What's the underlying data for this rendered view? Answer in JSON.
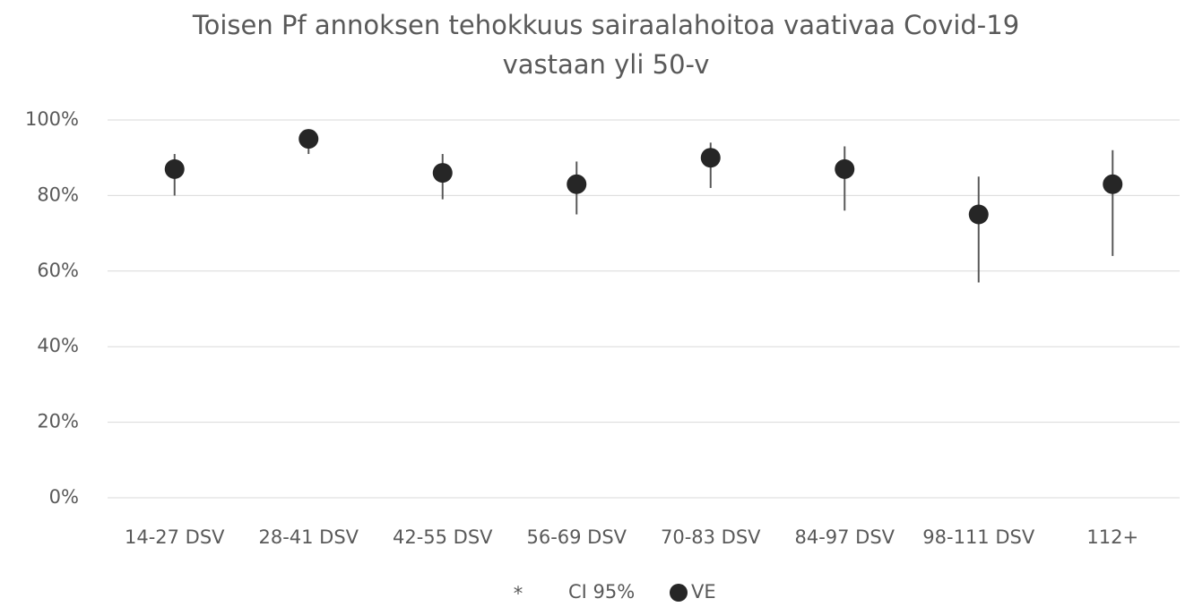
{
  "chart_data": {
    "type": "errorpoint",
    "title": "Toisen Pf annoksen tehokkuus sairaalahoitoa vaativaa Covid-19",
    "subtitle": "vastaan yli 50-v",
    "categories": [
      "14-27 DSV",
      "28-41 DSV",
      "42-55 DSV",
      "56-69 DSV",
      "70-83 DSV",
      "84-97 DSV",
      "98-111 DSV",
      "112+"
    ],
    "series": [
      {
        "name": "VE",
        "color": "#262626",
        "values": [
          87,
          95,
          86,
          83,
          90,
          87,
          75,
          83
        ]
      }
    ],
    "ci": {
      "name": "CI 95%",
      "marker": "*",
      "color": "#595959",
      "low": [
        80,
        91,
        79,
        75,
        82,
        76,
        57,
        64
      ],
      "high": [
        91,
        96,
        91,
        89,
        94,
        93,
        85,
        92
      ]
    },
    "ylim": [
      0,
      100
    ],
    "yticks": [
      {
        "value": 0,
        "label": "0%"
      },
      {
        "value": 20,
        "label": "20%"
      },
      {
        "value": 40,
        "label": "40%"
      },
      {
        "value": 60,
        "label": "60%"
      },
      {
        "value": 80,
        "label": "80%"
      },
      {
        "value": 100,
        "label": "100%"
      }
    ],
    "grid": true,
    "legend": "bottom"
  }
}
